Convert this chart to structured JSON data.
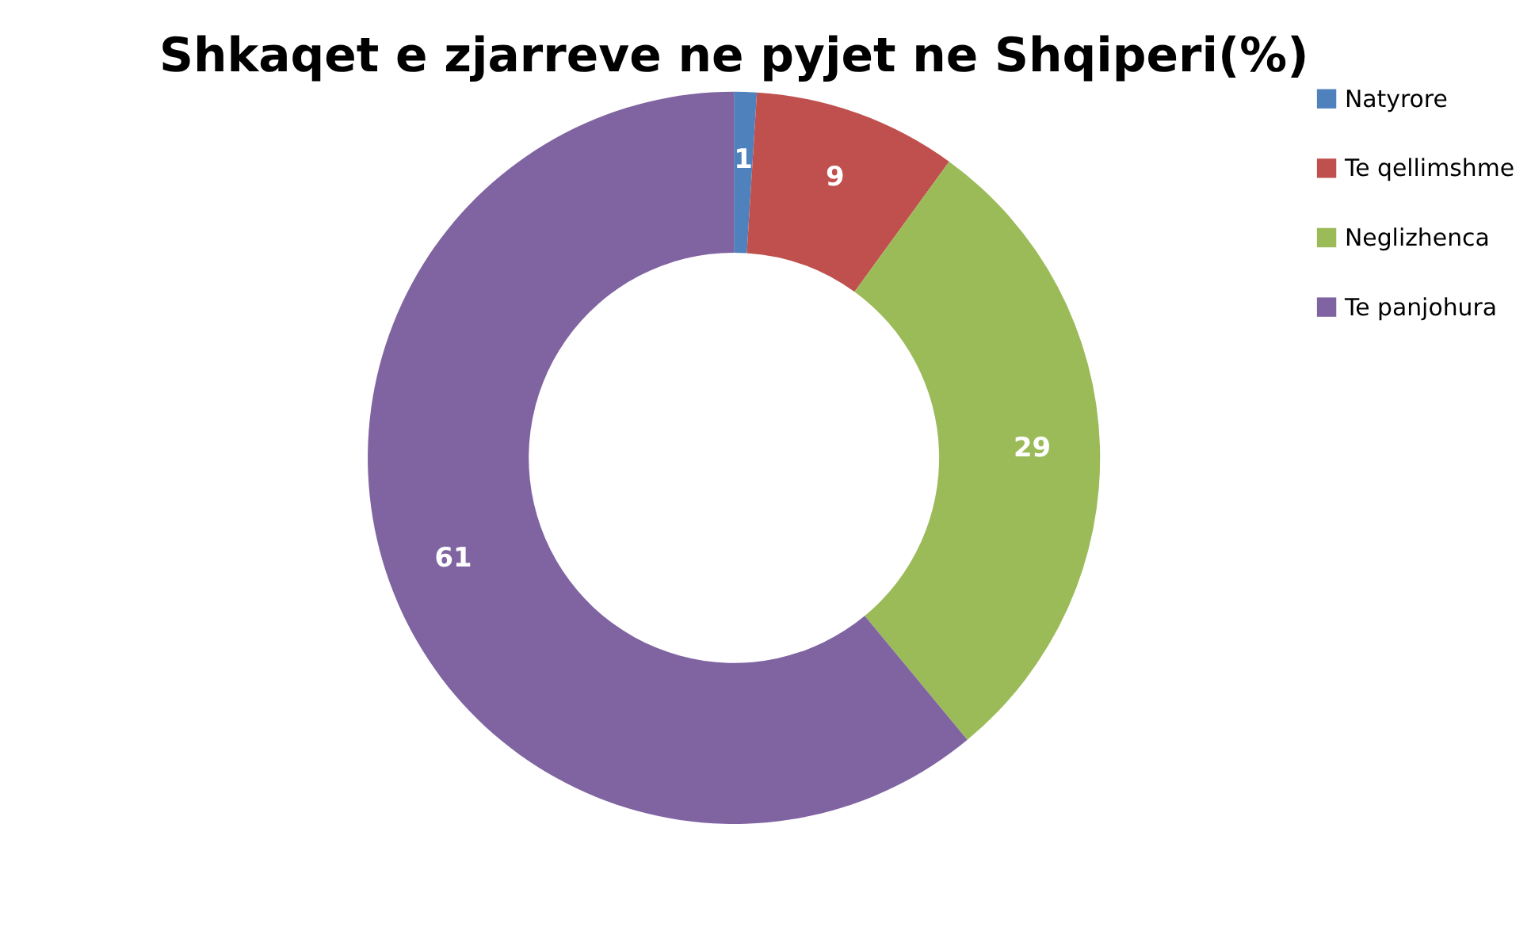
{
  "chart_data": {
    "type": "donut",
    "title": "Shkaqet e zjarreve ne pyjet ne Shqiperi(%)",
    "categories": [
      "Natyrore",
      "Te qellimshme",
      "Neglizhenca",
      "Te panjohura"
    ],
    "values": [
      1,
      9,
      29,
      61
    ],
    "colors": [
      "#4f81bd",
      "#c0504d",
      "#9bbb59",
      "#8064a2"
    ],
    "data_labels": true,
    "legend": "right"
  }
}
